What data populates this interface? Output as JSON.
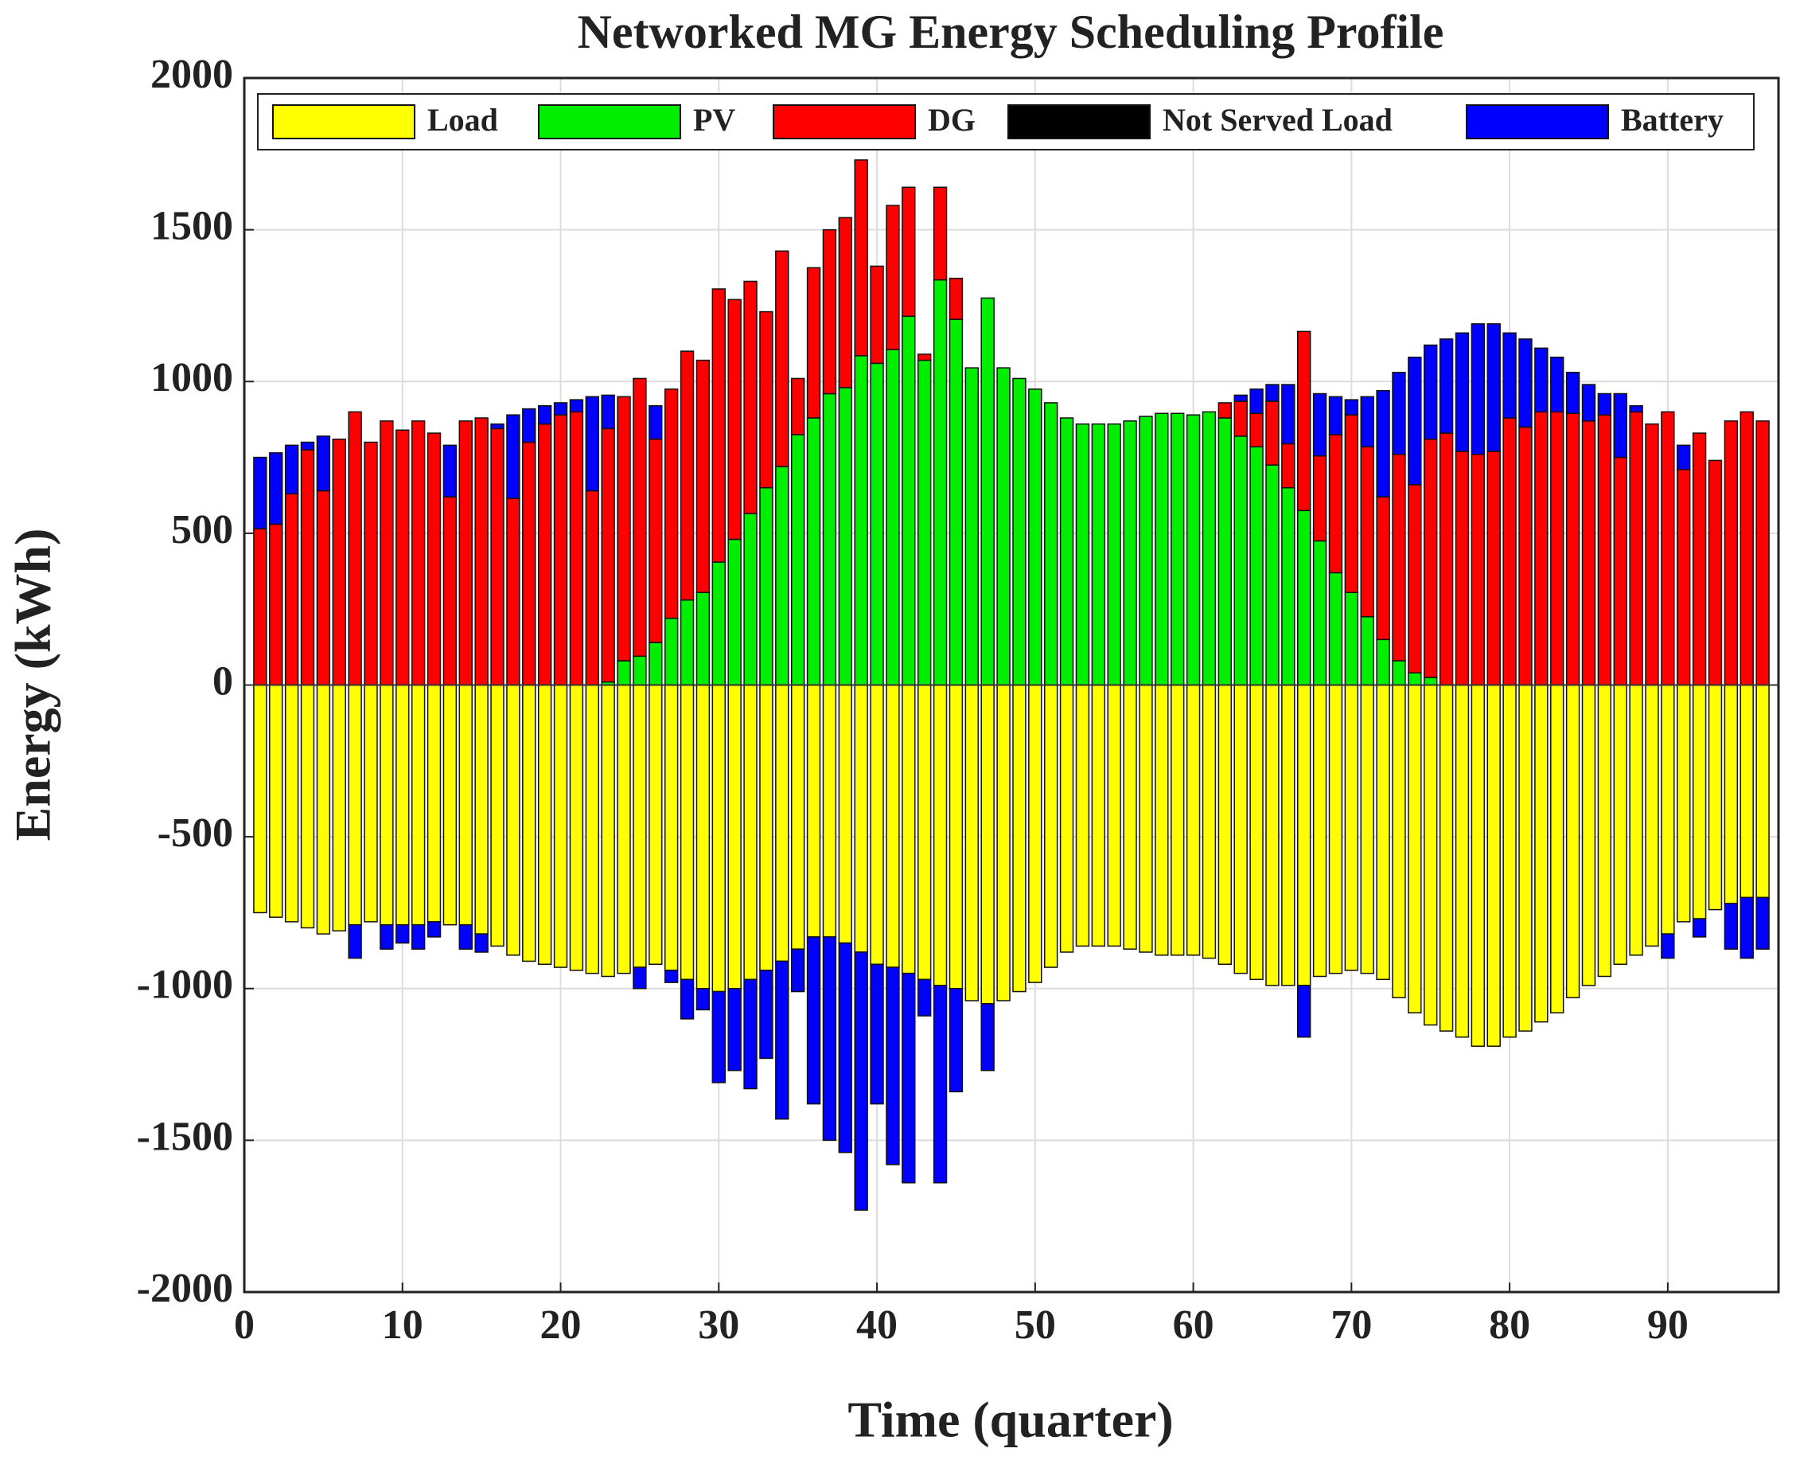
{
  "chart_data": {
    "type": "bar",
    "stacked": true,
    "title": "Networked MG Energy Scheduling Profile",
    "xlabel": "Time (quarter)",
    "ylabel": "Energy (kWh)",
    "x": [
      1,
      2,
      3,
      4,
      5,
      6,
      7,
      8,
      9,
      10,
      11,
      12,
      13,
      14,
      15,
      16,
      17,
      18,
      19,
      20,
      21,
      22,
      23,
      24,
      25,
      26,
      27,
      28,
      29,
      30,
      31,
      32,
      33,
      34,
      35,
      36,
      37,
      38,
      39,
      40,
      41,
      42,
      43,
      44,
      45,
      46,
      47,
      48,
      49,
      50,
      51,
      52,
      53,
      54,
      55,
      56,
      57,
      58,
      59,
      60,
      61,
      62,
      63,
      64,
      65,
      66,
      67,
      68,
      69,
      70,
      71,
      72,
      73,
      74,
      75,
      76,
      77,
      78,
      79,
      80,
      81,
      82,
      83,
      84,
      85,
      86,
      87,
      88,
      89,
      90,
      91,
      92,
      93,
      94,
      95,
      96
    ],
    "series": [
      {
        "name": "Load",
        "color": "#ffff00",
        "values": [
          -750,
          -765,
          -780,
          -800,
          -820,
          -810,
          -790,
          -780,
          -790,
          -790,
          -790,
          -780,
          -790,
          -790,
          -820,
          -860,
          -890,
          -910,
          -920,
          -930,
          -940,
          -950,
          -960,
          -950,
          -930,
          -920,
          -940,
          -970,
          -1000,
          -1010,
          -1000,
          -970,
          -940,
          -910,
          -870,
          -830,
          -830,
          -850,
          -880,
          -920,
          -930,
          -950,
          -970,
          -990,
          -1000,
          -1040,
          -1050,
          -1040,
          -1010,
          -980,
          -930,
          -880,
          -860,
          -860,
          -860,
          -870,
          -880,
          -890,
          -890,
          -890,
          -900,
          -920,
          -950,
          -970,
          -990,
          -990,
          -990,
          -960,
          -950,
          -940,
          -950,
          -970,
          -1030,
          -1080,
          -1120,
          -1140,
          -1160,
          -1190,
          -1190,
          -1160,
          -1140,
          -1110,
          -1080,
          -1030,
          -990,
          -960,
          -920,
          -890,
          -860,
          -820,
          -780,
          -770,
          -740,
          -720,
          -700,
          -700
        ]
      },
      {
        "name": "PV",
        "color": "#00ee00",
        "values": [
          0,
          0,
          0,
          0,
          0,
          0,
          0,
          0,
          0,
          0,
          0,
          0,
          0,
          0,
          0,
          0,
          0,
          0,
          0,
          0,
          0,
          0,
          10,
          80,
          95,
          140,
          220,
          280,
          305,
          405,
          480,
          565,
          650,
          720,
          825,
          880,
          960,
          980,
          1085,
          1060,
          1105,
          1215,
          1070,
          1335,
          1205,
          1045,
          1275,
          1045,
          1010,
          975,
          930,
          880,
          860,
          860,
          860,
          870,
          885,
          895,
          895,
          890,
          900,
          880,
          820,
          785,
          725,
          650,
          575,
          475,
          370,
          305,
          225,
          150,
          80,
          40,
          25,
          0,
          0,
          0,
          0,
          0,
          0,
          0,
          0,
          0,
          0,
          0,
          0,
          0,
          0,
          0,
          0,
          0,
          0,
          0,
          0,
          0
        ]
      },
      {
        "name": "DG",
        "color": "#ff0000",
        "values": [
          515,
          530,
          630,
          775,
          640,
          810,
          900,
          800,
          870,
          840,
          870,
          830,
          620,
          870,
          880,
          845,
          615,
          800,
          860,
          890,
          900,
          640,
          835,
          870,
          915,
          670,
          755,
          820,
          765,
          900,
          790,
          765,
          580,
          710,
          185,
          495,
          540,
          560,
          645,
          320,
          475,
          425,
          20,
          305,
          135,
          0,
          0,
          0,
          0,
          0,
          0,
          0,
          0,
          0,
          0,
          0,
          0,
          0,
          0,
          0,
          0,
          50,
          115,
          110,
          210,
          145,
          590,
          280,
          455,
          585,
          560,
          470,
          680,
          620,
          785,
          830,
          770,
          760,
          770,
          880,
          850,
          900,
          900,
          895,
          870,
          890,
          750,
          900,
          860,
          900,
          710,
          830,
          740,
          870,
          900,
          870
        ]
      },
      {
        "name": "Not Served Load",
        "color": "#000000",
        "values": [
          0,
          0,
          0,
          0,
          0,
          0,
          0,
          0,
          0,
          0,
          0,
          0,
          0,
          0,
          0,
          0,
          0,
          0,
          0,
          0,
          0,
          0,
          0,
          0,
          0,
          0,
          0,
          0,
          0,
          0,
          0,
          0,
          0,
          0,
          0,
          0,
          0,
          0,
          0,
          0,
          0,
          0,
          0,
          0,
          0,
          0,
          0,
          0,
          0,
          0,
          0,
          0,
          0,
          0,
          0,
          0,
          0,
          0,
          0,
          0,
          0,
          0,
          0,
          0,
          0,
          0,
          0,
          0,
          0,
          0,
          0,
          0,
          0,
          0,
          0,
          0,
          0,
          0,
          0,
          0,
          0,
          0,
          0,
          0,
          0,
          0,
          0,
          0,
          0,
          0,
          0,
          0,
          0,
          0,
          0,
          0
        ]
      },
      {
        "name": "Battery",
        "color": "#0000ff",
        "values": [
          235,
          235,
          160,
          25,
          180,
          0,
          -110,
          0,
          -80,
          -60,
          -80,
          -50,
          170,
          -80,
          -60,
          15,
          275,
          110,
          60,
          40,
          40,
          310,
          110,
          0,
          -70,
          110,
          -40,
          -130,
          -70,
          -300,
          -270,
          -360,
          -290,
          -520,
          -140,
          -550,
          -670,
          -690,
          -850,
          -460,
          -650,
          -690,
          -120,
          -650,
          -340,
          0,
          -220,
          0,
          0,
          0,
          0,
          0,
          0,
          0,
          0,
          0,
          0,
          0,
          0,
          0,
          0,
          0,
          20,
          80,
          55,
          195,
          -170,
          205,
          125,
          50,
          165,
          350,
          270,
          420,
          310,
          310,
          390,
          430,
          420,
          280,
          290,
          210,
          180,
          135,
          120,
          70,
          210,
          20,
          0,
          -80,
          80,
          -60,
          0,
          -150,
          -200,
          -170
        ]
      }
    ],
    "xlim": [
      0,
      97
    ],
    "xticks": [
      0,
      10,
      20,
      30,
      40,
      50,
      60,
      70,
      80,
      90
    ],
    "ylim": [
      -2000,
      2000
    ],
    "yticks": [
      -2000,
      -1500,
      -1000,
      -500,
      0,
      500,
      1000,
      1500,
      2000
    ],
    "grid": true,
    "legend": "north"
  }
}
